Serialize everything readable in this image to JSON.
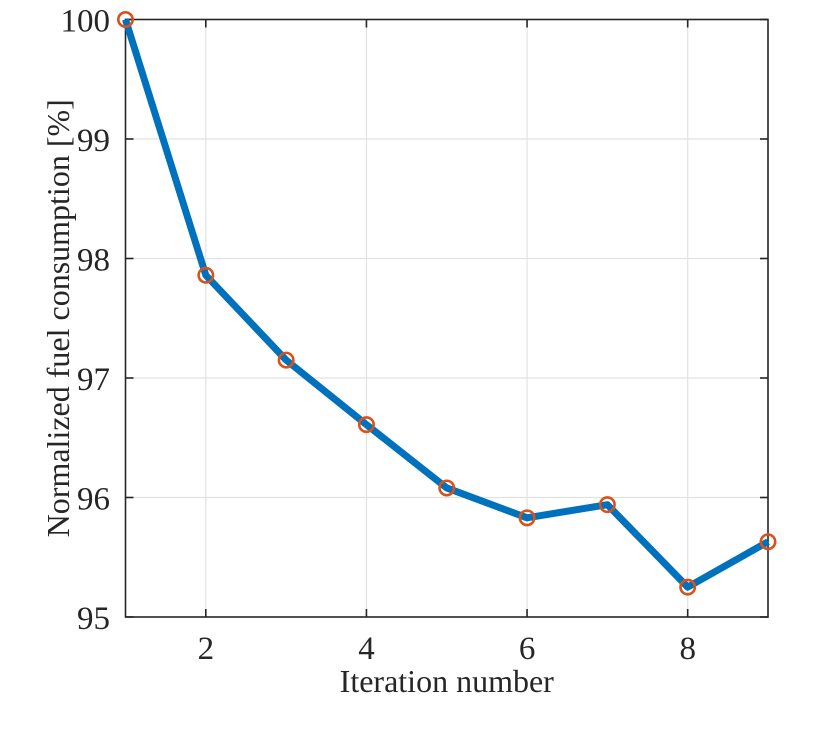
{
  "figure": {
    "background": "#ffffff"
  },
  "chart_data": {
    "type": "line",
    "title": "",
    "xlabel": "Iteration number",
    "ylabel": "Normalized fuel consumption [%]",
    "x": [
      1,
      2,
      3,
      4,
      5,
      6,
      7,
      8,
      9
    ],
    "series": [
      {
        "name": "normalized fuel consumption",
        "values": [
          100.0,
          97.86,
          97.15,
          96.61,
          96.08,
          95.83,
          95.94,
          95.25,
          95.63
        ]
      }
    ],
    "xlim": [
      1,
      9
    ],
    "ylim": [
      95,
      100
    ],
    "xticks": [
      2,
      4,
      6,
      8
    ],
    "xtick_labels": [
      "2",
      "4",
      "6",
      "8"
    ],
    "yticks": [
      95,
      96,
      97,
      98,
      99,
      100
    ],
    "ytick_labels": [
      "95",
      "96",
      "97",
      "98",
      "99",
      "100"
    ],
    "grid": true,
    "legend": "none",
    "marker": "o",
    "colors": {
      "line": "#0072BD",
      "marker": "#D95319",
      "grid": "#e2e2e2",
      "axis": "#262626",
      "text": "#262626"
    }
  }
}
